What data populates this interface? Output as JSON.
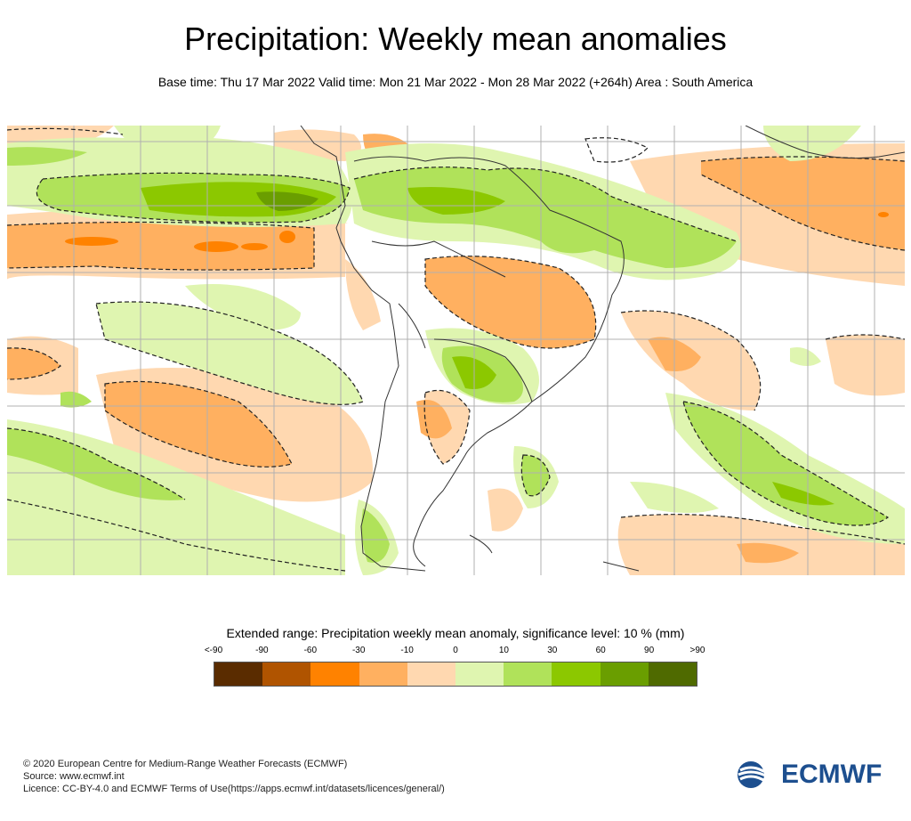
{
  "title": "Precipitation: Weekly mean anomalies",
  "subtitle": "Base time: Thu 17 Mar 2022 Valid time: Mon 21 Mar 2022 - Mon 28 Mar 2022 (+264h) Area : South America",
  "legend": {
    "title": "Extended range: Precipitation weekly mean anomaly, significance level: 10 % (mm)",
    "labels": [
      "<-90",
      "-90",
      "-60",
      "-30",
      "-10",
      "0",
      "10",
      "30",
      "60",
      "90",
      ">90"
    ],
    "colors": [
      "#5a2c00",
      "#b05400",
      "#ff8200",
      "#ffb060",
      "#ffd8b0",
      "#dff5b0",
      "#b0e25a",
      "#8cc800",
      "#6a9e00",
      "#4f6a00"
    ]
  },
  "footer": {
    "copyright": "© 2020 European Centre for Medium-Range Weather Forecasts (ECMWF)",
    "source": "Source: www.ecmwf.int",
    "licence": "Licence: CC-BY-4.0 and ECMWF Terms of Use(https://apps.ecmwf.int/datasets/licences/general/)"
  },
  "logo": {
    "text": "ECMWF",
    "color": "#1d4f8f"
  }
}
